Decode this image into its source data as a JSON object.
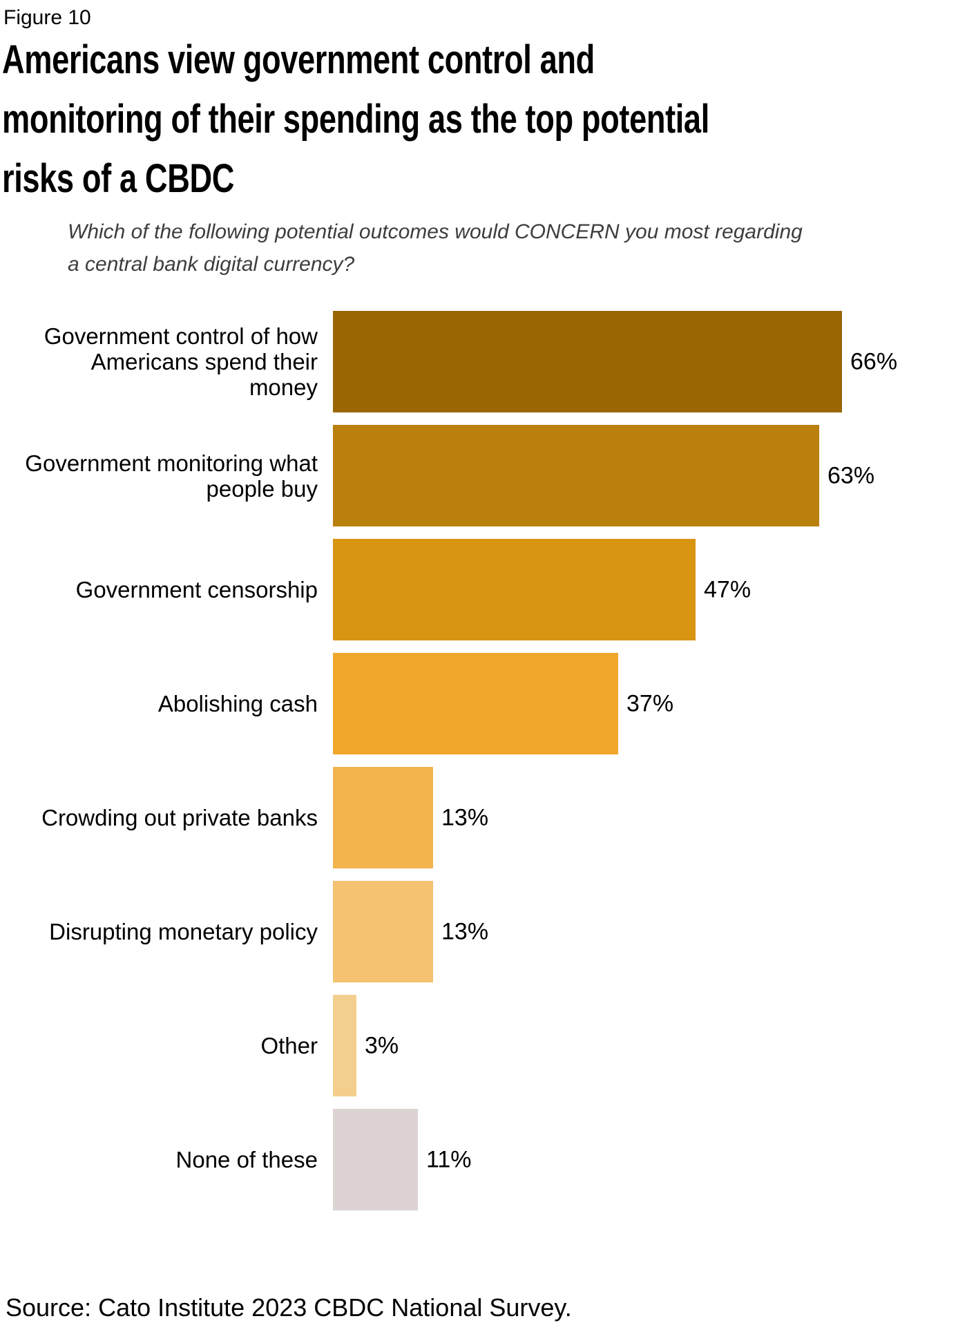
{
  "figure_label": "Figure 10",
  "title_lines": [
    "Americans view government control and",
    "monitoring of their spending as the top potential",
    "risks of a CBDC"
  ],
  "subtitle_lines": [
    "Which of the following potential outcomes would CONCERN you most regarding",
    "a central bank digital currency?"
  ],
  "source": "Source: Cato Institute 2023 CBDC National Survey.",
  "chart_data": {
    "type": "bar",
    "orientation": "horizontal",
    "title": "Americans view government control and monitoring of their spending as the top potential risks of a CBDC",
    "subtitle": "Which of the following potential outcomes would CONCERN you most regarding a central bank digital currency?",
    "categories": [
      "Government control of how Americans spend their money",
      "Government monitoring what people buy",
      "Government censorship",
      "Abolishing cash",
      "Crowding out private banks",
      "Disrupting monetary policy",
      "Other",
      "None of these"
    ],
    "values": [
      66,
      63,
      47,
      37,
      13,
      13,
      3,
      11
    ],
    "unit": "%",
    "axes_hidden": true,
    "grid": false,
    "legend": false,
    "value_label_position": "right-of-bar",
    "rows": [
      {
        "lines": [
          "Government control of how",
          "Americans spend their",
          "money"
        ],
        "value": 66,
        "value_label": "66%",
        "color": "#9A6604"
      },
      {
        "lines": [
          "Government monitoring what",
          "people buy"
        ],
        "value": 63,
        "value_label": "63%",
        "color": "#B9800D"
      },
      {
        "lines": [
          "Government censorship"
        ],
        "value": 47,
        "value_label": "47%",
        "color": "#D89413"
      },
      {
        "lines": [
          "Abolishing cash"
        ],
        "value": 37,
        "value_label": "37%",
        "color": "#F1A72C"
      },
      {
        "lines": [
          "Crowding out private banks"
        ],
        "value": 13,
        "value_label": "13%",
        "color": "#F3B44E"
      },
      {
        "lines": [
          "Disrupting monetary policy"
        ],
        "value": 13,
        "value_label": "13%",
        "color": "#F4C271"
      },
      {
        "lines": [
          "Other"
        ],
        "value": 3,
        "value_label": "3%",
        "color": "#F4CE8C"
      },
      {
        "lines": [
          "None of these"
        ],
        "value": 11,
        "value_label": "11%",
        "color": "#DDD3D3"
      }
    ]
  }
}
